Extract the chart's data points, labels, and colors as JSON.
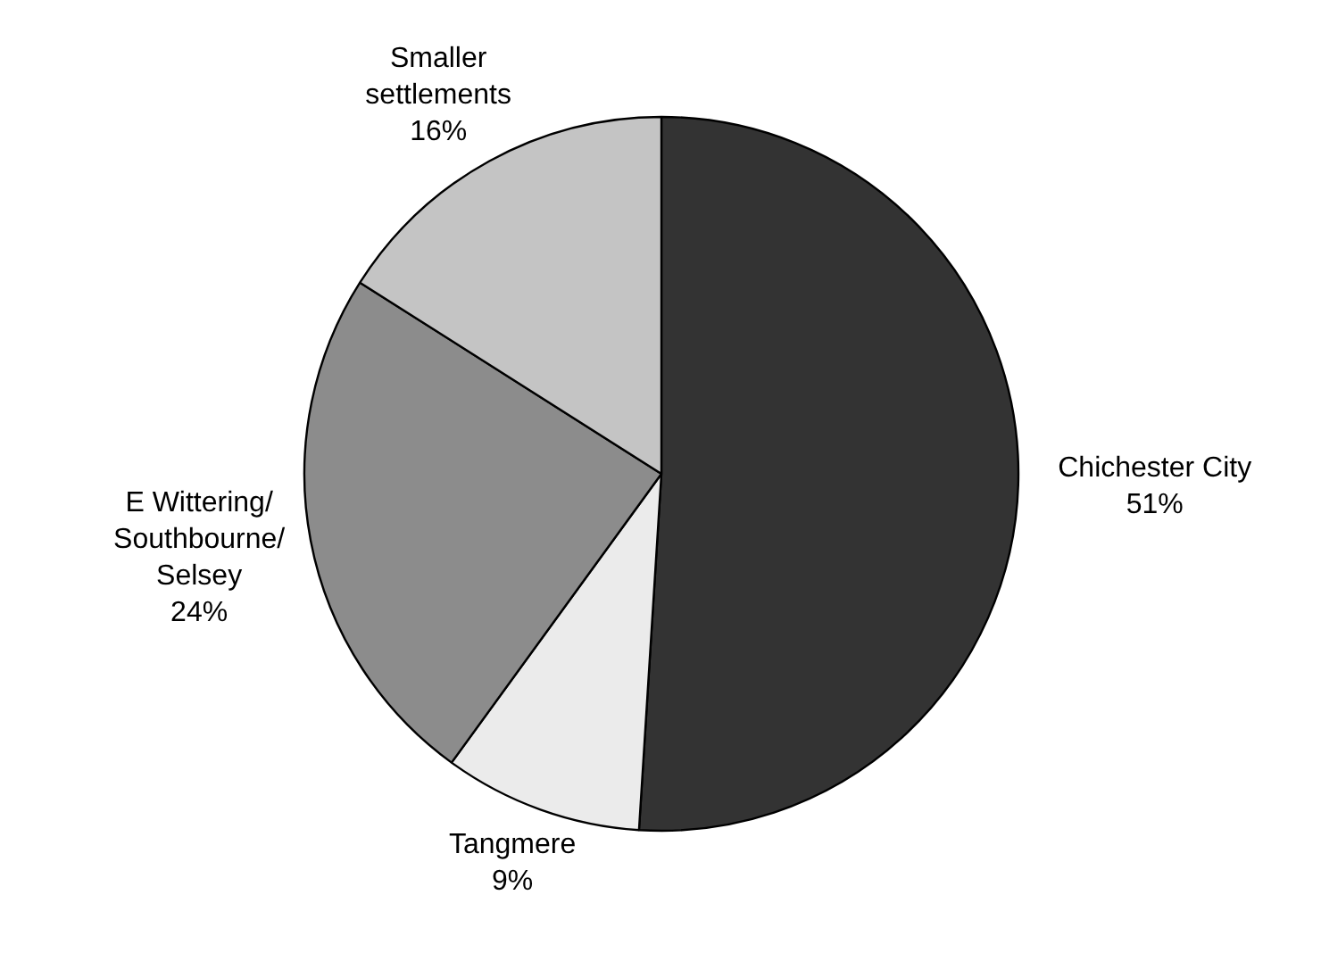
{
  "chart_data": {
    "type": "pie",
    "categories": [
      "Chichester City",
      "Tangmere",
      "E Wittering/\nSouthbourne/\nSelsey",
      "Smaller\nsettlements"
    ],
    "values": [
      51,
      9,
      24,
      16
    ],
    "value_labels": [
      "51%",
      "9%",
      "24%",
      "16%"
    ],
    "colors": [
      "#333333",
      "#ebebeb",
      "#8c8c8c",
      "#c4c4c4"
    ]
  }
}
